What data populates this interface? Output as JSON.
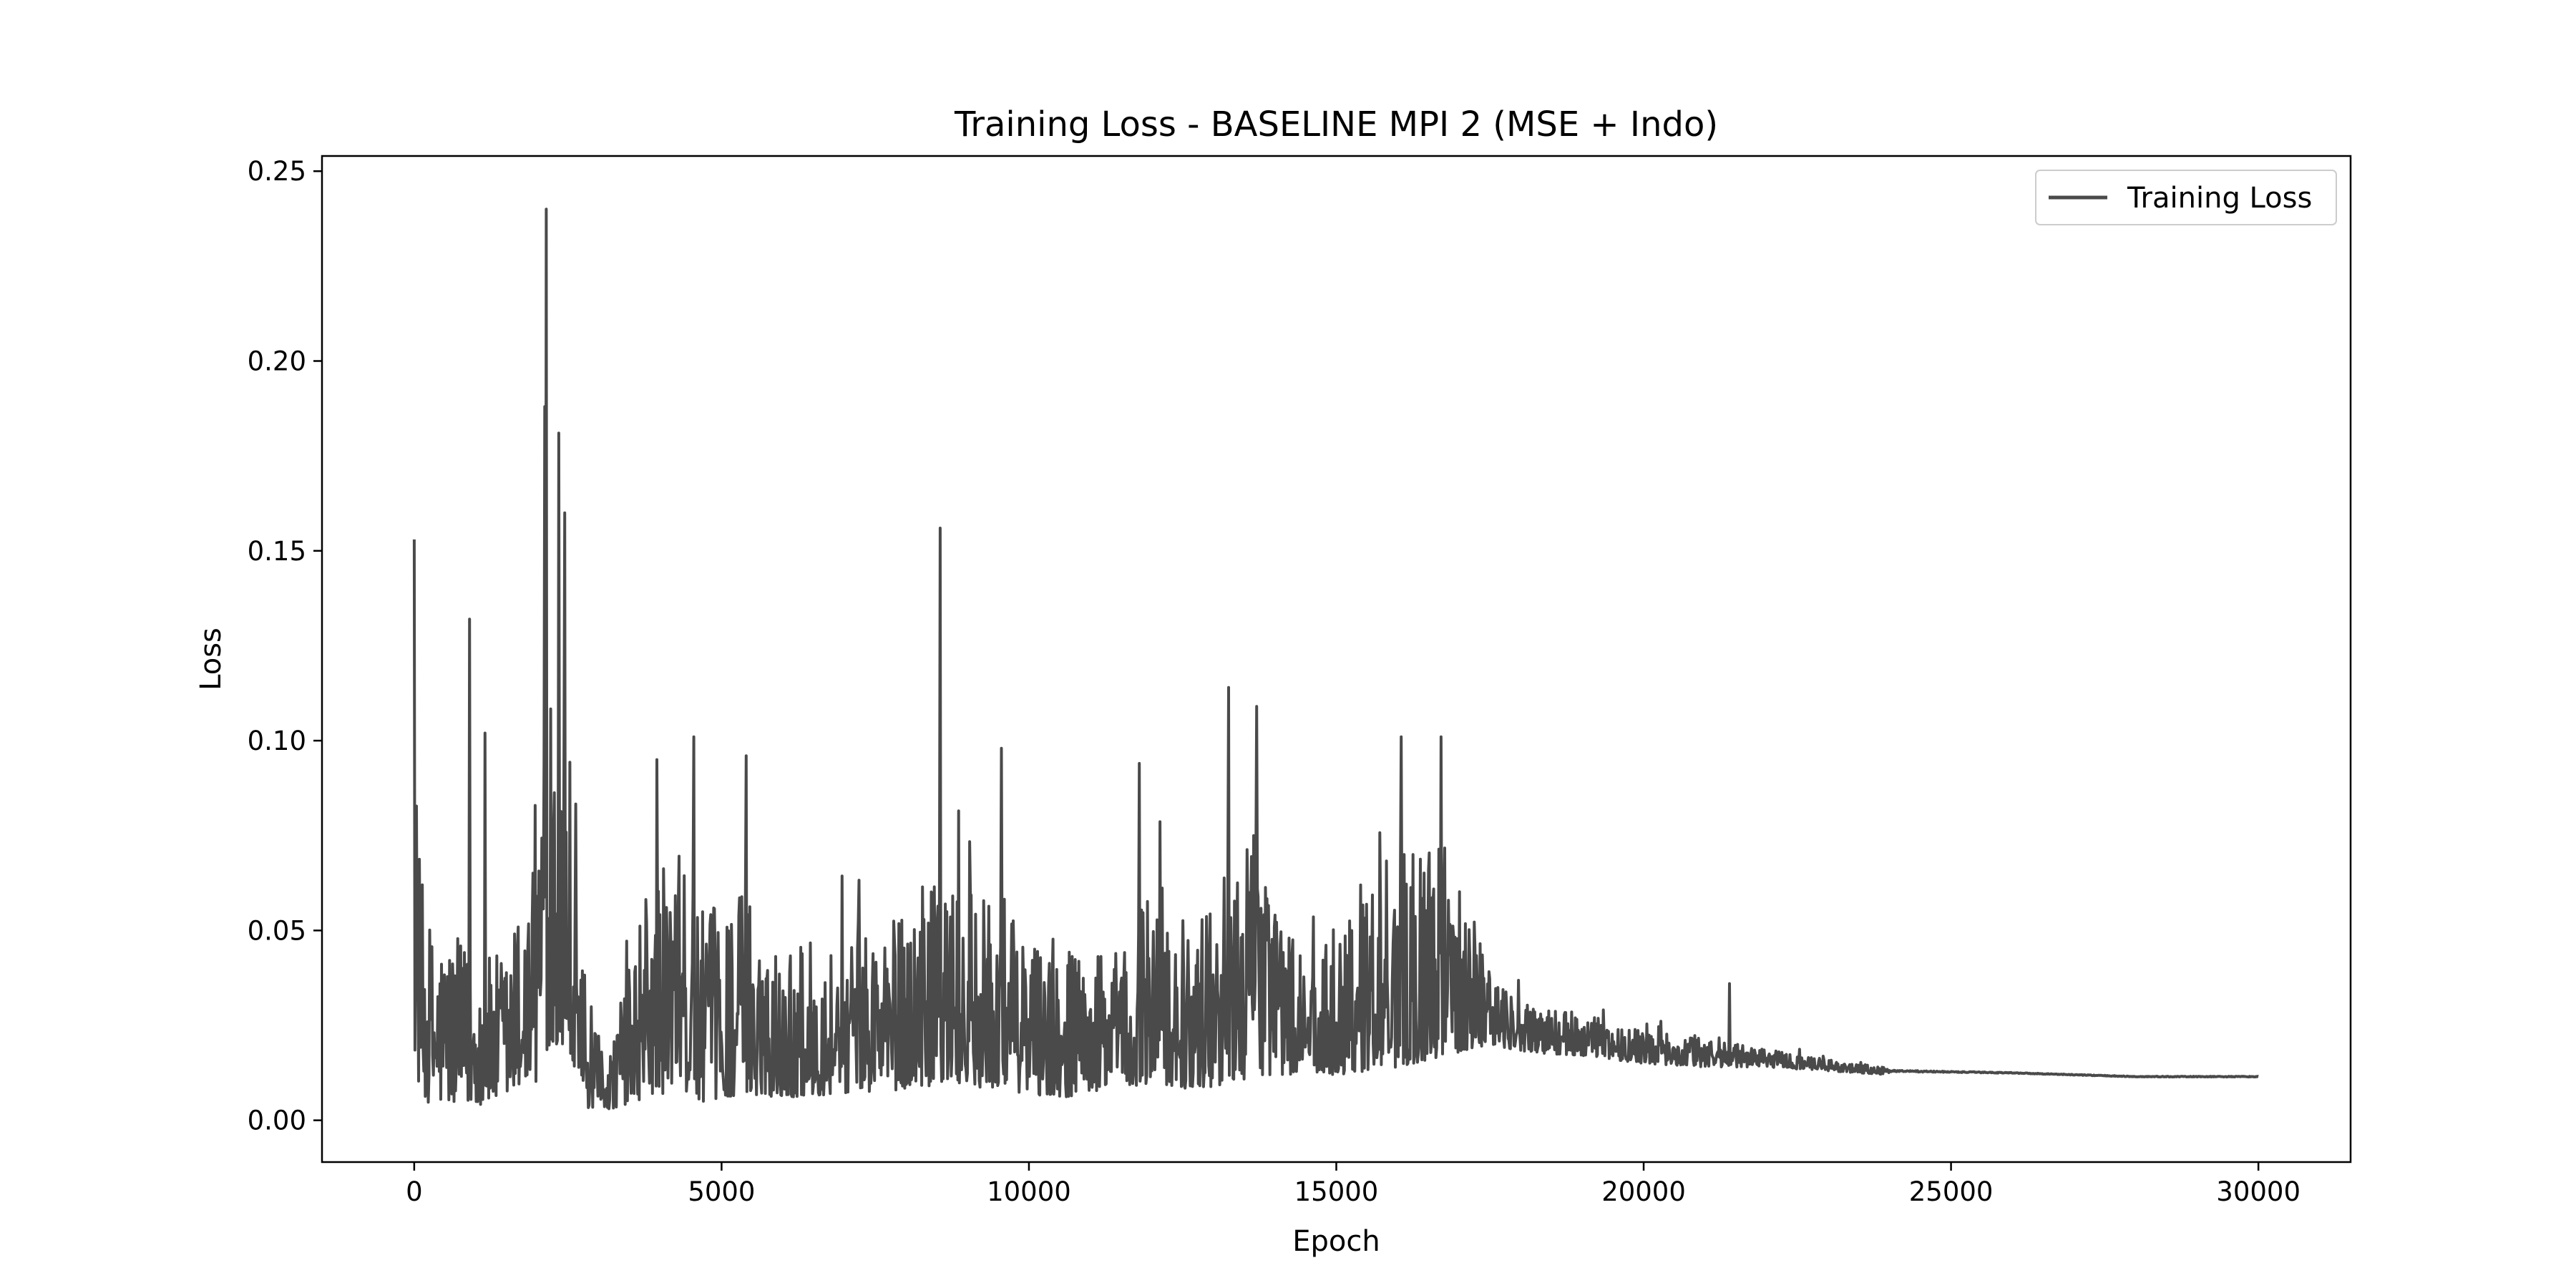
{
  "chart_data": {
    "type": "line",
    "title": "Training Loss - BASELINE MPI 2 (MSE + Indo)",
    "xlabel": "Epoch",
    "ylabel": "Loss",
    "xlim": [
      -1500,
      31500
    ],
    "ylim": [
      -0.011,
      0.254
    ],
    "x_ticks": [
      0,
      5000,
      10000,
      15000,
      20000,
      25000,
      30000
    ],
    "x_tick_labels": [
      "0",
      "5000",
      "10000",
      "15000",
      "20000",
      "25000",
      "30000"
    ],
    "y_ticks": [
      0.0,
      0.05,
      0.1,
      0.15,
      0.2,
      0.25
    ],
    "y_tick_labels": [
      "0.00",
      "0.05",
      "0.10",
      "0.15",
      "0.20",
      "0.25"
    ],
    "grid": false,
    "legend": {
      "placement": "top-right",
      "entries": [
        "Training Loss"
      ]
    },
    "series": [
      {
        "name": "Training Loss",
        "color": "#4a4a4a",
        "envelope": {
          "x": [
            0,
            100,
            300,
            600,
            1000,
            1500,
            2000,
            2200,
            2500,
            2800,
            3200,
            3800,
            4300,
            4700,
            5400,
            6000,
            7000,
            8000,
            8700,
            9500,
            10500,
            11500,
            12000,
            12700,
            13300,
            13800,
            14500,
            15000,
            16000,
            17000,
            17500,
            18000,
            19000,
            20000,
            21000,
            22000,
            23000,
            24000,
            26000,
            28000,
            30000
          ],
          "upper": [
            0.11,
            0.065,
            0.05,
            0.05,
            0.042,
            0.045,
            0.075,
            0.15,
            0.11,
            0.025,
            0.02,
            0.065,
            0.07,
            0.055,
            0.062,
            0.045,
            0.05,
            0.055,
            0.065,
            0.055,
            0.045,
            0.045,
            0.065,
            0.05,
            0.075,
            0.072,
            0.04,
            0.055,
            0.075,
            0.072,
            0.04,
            0.032,
            0.028,
            0.024,
            0.022,
            0.019,
            0.016,
            0.014,
            0.013,
            0.012,
            0.012
          ],
          "lower": [
            0.02,
            0.006,
            0.004,
            0.004,
            0.004,
            0.005,
            0.01,
            0.02,
            0.02,
            0.003,
            0.003,
            0.006,
            0.008,
            0.005,
            0.007,
            0.006,
            0.007,
            0.008,
            0.01,
            0.008,
            0.006,
            0.008,
            0.01,
            0.008,
            0.01,
            0.012,
            0.012,
            0.012,
            0.014,
            0.018,
            0.02,
            0.018,
            0.017,
            0.015,
            0.014,
            0.014,
            0.013,
            0.012,
            0.012,
            0.011,
            0.011
          ]
        },
        "spikes": [
          {
            "x": 0,
            "y": 0.153
          },
          {
            "x": 900,
            "y": 0.132
          },
          {
            "x": 1150,
            "y": 0.102
          },
          {
            "x": 2150,
            "y": 0.24
          },
          {
            "x": 2120,
            "y": 0.188
          },
          {
            "x": 2350,
            "y": 0.181
          },
          {
            "x": 2450,
            "y": 0.16
          },
          {
            "x": 3950,
            "y": 0.095
          },
          {
            "x": 4550,
            "y": 0.101
          },
          {
            "x": 5400,
            "y": 0.096
          },
          {
            "x": 8550,
            "y": 0.156
          },
          {
            "x": 9550,
            "y": 0.098
          },
          {
            "x": 11800,
            "y": 0.094
          },
          {
            "x": 13250,
            "y": 0.114
          },
          {
            "x": 13700,
            "y": 0.109
          },
          {
            "x": 16050,
            "y": 0.101
          },
          {
            "x": 16700,
            "y": 0.101
          },
          {
            "x": 21400,
            "y": 0.036
          }
        ],
        "final_value": 0.012
      }
    ]
  }
}
